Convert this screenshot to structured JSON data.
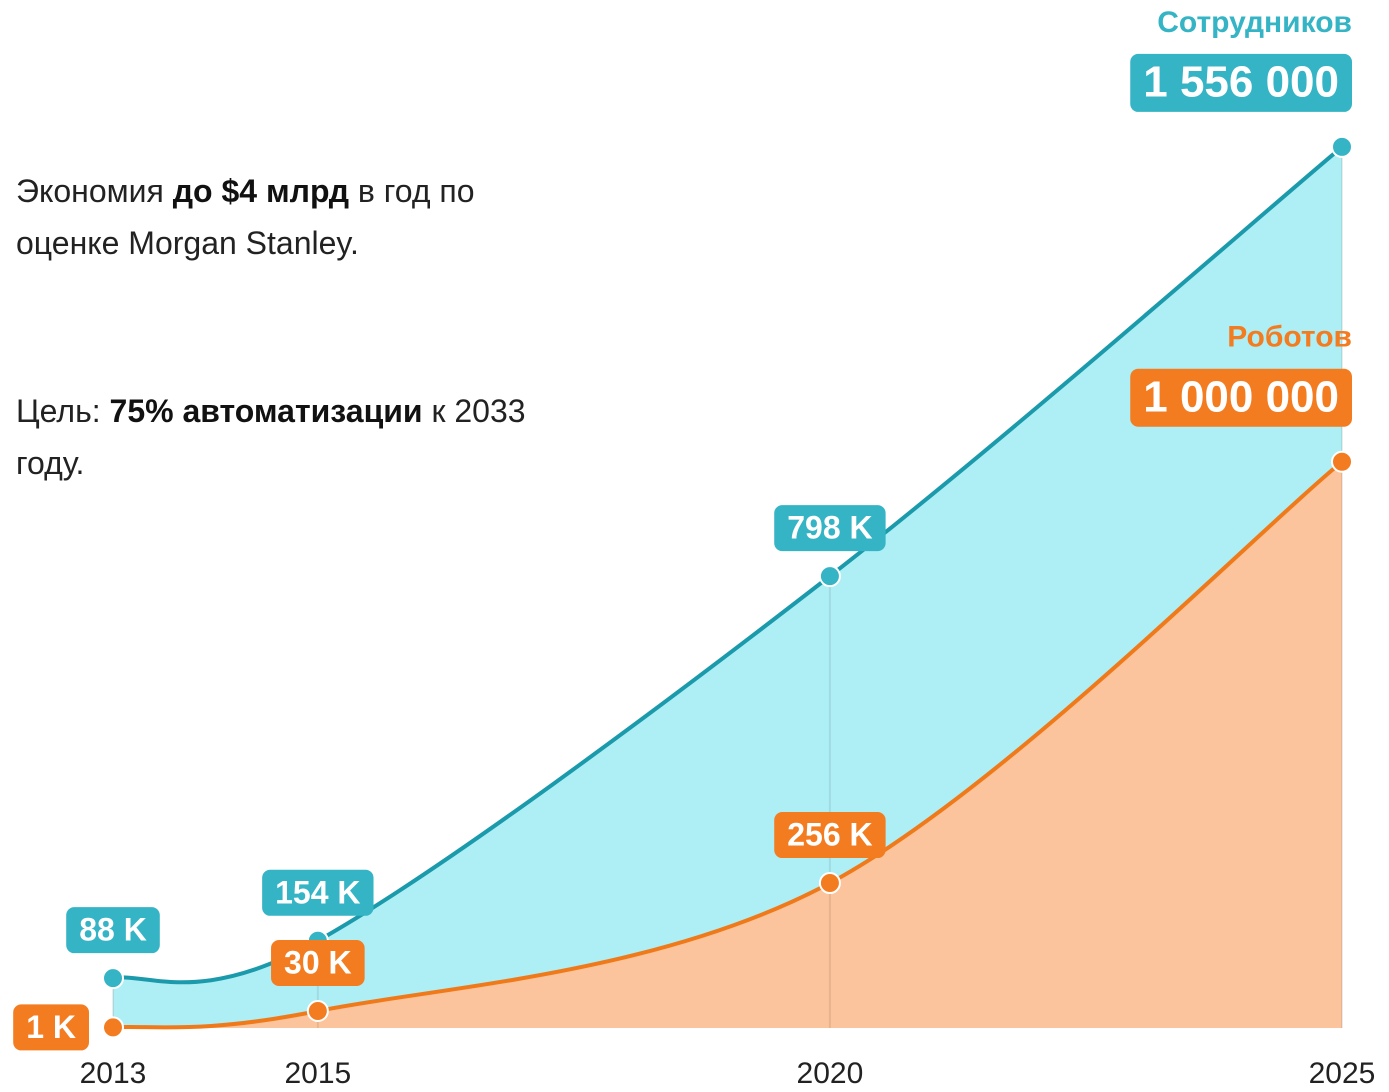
{
  "chart_data": {
    "type": "area",
    "x": [
      2013,
      2015,
      2020,
      2025
    ],
    "xlim": [
      2013,
      2025
    ],
    "xticks": [
      2013,
      2015,
      2020,
      2025
    ],
    "ylim": [
      0,
      1600000
    ],
    "series": [
      {
        "name": "Сотрудников",
        "color": "#1a9aab",
        "fill": "#aeeef5",
        "label_color": "#35b4c5",
        "values": [
          88000,
          154000,
          798000,
          1556000
        ],
        "value_labels": [
          "88 K",
          "154 K",
          "798 K",
          "1 556 000"
        ]
      },
      {
        "name": "Роботов",
        "color": "#f07a1a",
        "fill": "#fbc49c",
        "label_color": "#f47c20",
        "values": [
          1000,
          30000,
          256000,
          1000000
        ],
        "value_labels": [
          "1 K",
          "30 K",
          "256 K",
          "1 000 000"
        ]
      }
    ],
    "annotations": [
      [
        "Экономия ",
        "до $4 млрд",
        " в год по оценке Morgan Stanley."
      ],
      [
        "Цель: ",
        "75% автоматизации",
        " к 2033 году."
      ]
    ]
  }
}
